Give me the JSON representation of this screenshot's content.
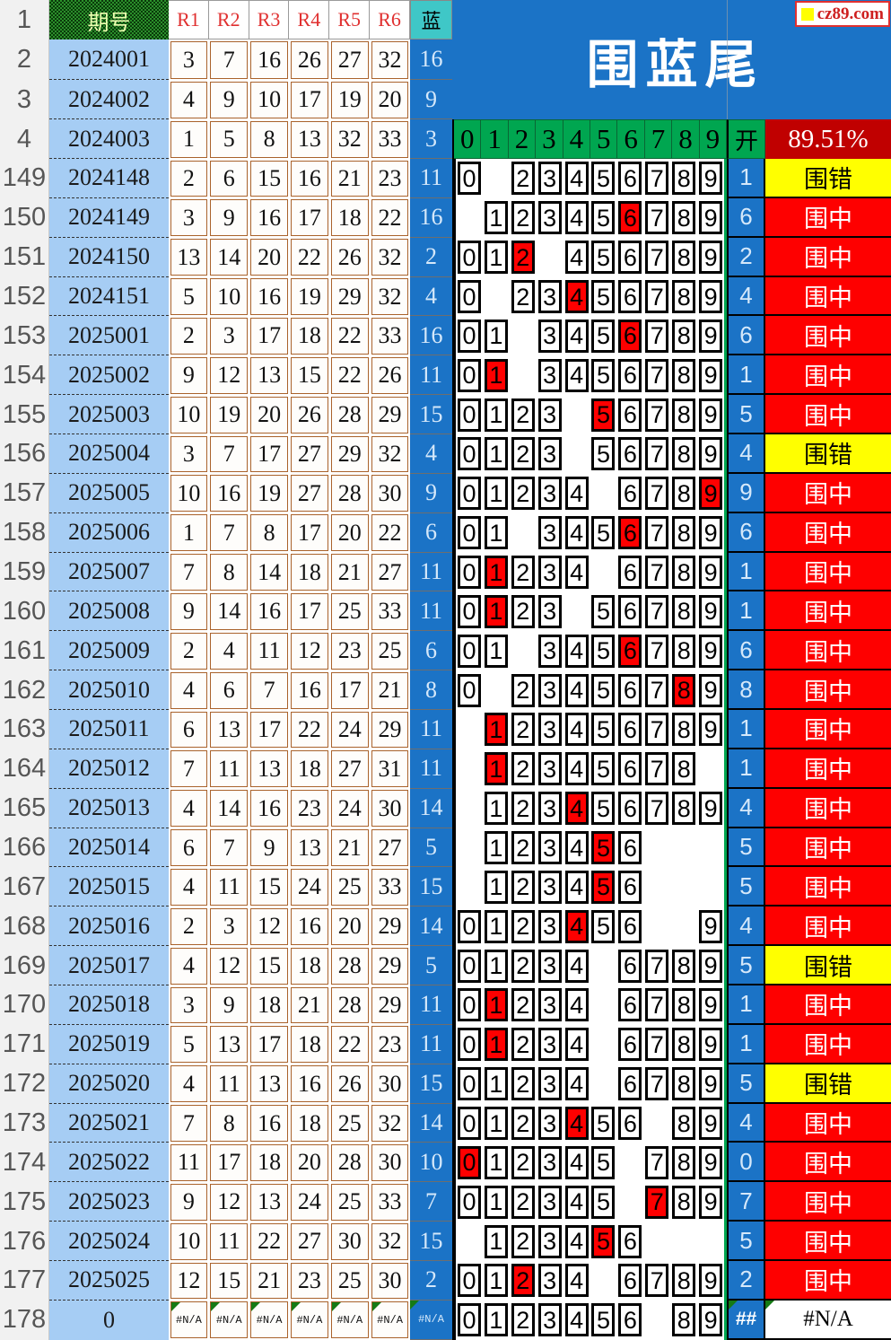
{
  "header": {
    "corner_rows": [
      "1",
      "2",
      "3",
      "4"
    ],
    "period_label": "期号",
    "r_labels": [
      "R1",
      "R2",
      "R3",
      "R4",
      "R5",
      "R6"
    ],
    "blue_label": "蓝",
    "banner_title": "围蓝尾",
    "watermark_text": "cz89.com",
    "digits": [
      "0",
      "1",
      "2",
      "3",
      "4",
      "5",
      "6",
      "7",
      "8",
      "9"
    ],
    "kai_label": "开",
    "accuracy": "89.51%"
  },
  "status_legend": {
    "hit": "围中",
    "miss": "围错"
  },
  "colors": {
    "banner_blue": "#1B73C6",
    "period_light_blue": "#A6CDF4",
    "blue_header_teal": "#3FC7C7",
    "digit_header_green": "#00A650",
    "accuracy_dark_red": "#C00000",
    "hit_red": "#FE0000",
    "miss_yellow": "#FFFF00",
    "red_ball_border_brown": "#A9622B"
  },
  "top_rows": [
    {
      "n": "2",
      "p": "2024001",
      "r": [
        "3",
        "7",
        "16",
        "26",
        "27",
        "32"
      ],
      "b": "16"
    },
    {
      "n": "3",
      "p": "2024002",
      "r": [
        "4",
        "9",
        "10",
        "17",
        "19",
        "20"
      ],
      "b": "9"
    },
    {
      "n": "4",
      "p": "2024003",
      "r": [
        "1",
        "5",
        "8",
        "13",
        "32",
        "33"
      ],
      "b": "3"
    }
  ],
  "rows": [
    {
      "n": "149",
      "p": "2024148",
      "r": [
        "2",
        "6",
        "15",
        "16",
        "21",
        "23"
      ],
      "b": "11",
      "blanks": [
        1
      ],
      "red": -1,
      "k": "1",
      "s": "围错",
      "t": "miss"
    },
    {
      "n": "150",
      "p": "2024149",
      "r": [
        "3",
        "9",
        "16",
        "17",
        "18",
        "22"
      ],
      "b": "16",
      "blanks": [
        0
      ],
      "red": 6,
      "k": "6",
      "s": "围中",
      "t": "hit"
    },
    {
      "n": "151",
      "p": "2024150",
      "r": [
        "13",
        "14",
        "20",
        "22",
        "26",
        "32"
      ],
      "b": "2",
      "blanks": [
        3
      ],
      "red": 2,
      "k": "2",
      "s": "围中",
      "t": "hit"
    },
    {
      "n": "152",
      "p": "2024151",
      "r": [
        "5",
        "10",
        "16",
        "19",
        "29",
        "32"
      ],
      "b": "4",
      "blanks": [
        1
      ],
      "red": 4,
      "k": "4",
      "s": "围中",
      "t": "hit"
    },
    {
      "n": "153",
      "p": "2025001",
      "r": [
        "2",
        "3",
        "17",
        "18",
        "22",
        "33"
      ],
      "b": "16",
      "blanks": [
        2
      ],
      "red": 6,
      "k": "6",
      "s": "围中",
      "t": "hit"
    },
    {
      "n": "154",
      "p": "2025002",
      "r": [
        "9",
        "12",
        "13",
        "15",
        "22",
        "26"
      ],
      "b": "11",
      "blanks": [
        2
      ],
      "red": 1,
      "k": "1",
      "s": "围中",
      "t": "hit"
    },
    {
      "n": "155",
      "p": "2025003",
      "r": [
        "10",
        "19",
        "20",
        "26",
        "28",
        "29"
      ],
      "b": "15",
      "blanks": [
        4
      ],
      "red": 5,
      "k": "5",
      "s": "围中",
      "t": "hit"
    },
    {
      "n": "156",
      "p": "2025004",
      "r": [
        "3",
        "7",
        "17",
        "27",
        "29",
        "32"
      ],
      "b": "4",
      "blanks": [
        4
      ],
      "red": -1,
      "k": "4",
      "s": "围错",
      "t": "miss"
    },
    {
      "n": "157",
      "p": "2025005",
      "r": [
        "10",
        "16",
        "19",
        "27",
        "28",
        "30"
      ],
      "b": "9",
      "blanks": [
        5
      ],
      "red": 9,
      "k": "9",
      "s": "围中",
      "t": "hit"
    },
    {
      "n": "158",
      "p": "2025006",
      "r": [
        "1",
        "7",
        "8",
        "17",
        "20",
        "22"
      ],
      "b": "6",
      "blanks": [
        2
      ],
      "red": 6,
      "k": "6",
      "s": "围中",
      "t": "hit"
    },
    {
      "n": "159",
      "p": "2025007",
      "r": [
        "7",
        "8",
        "14",
        "18",
        "21",
        "27"
      ],
      "b": "11",
      "blanks": [
        5
      ],
      "red": 1,
      "k": "1",
      "s": "围中",
      "t": "hit"
    },
    {
      "n": "160",
      "p": "2025008",
      "r": [
        "9",
        "14",
        "16",
        "17",
        "25",
        "33"
      ],
      "b": "11",
      "blanks": [
        4
      ],
      "red": 1,
      "k": "1",
      "s": "围中",
      "t": "hit"
    },
    {
      "n": "161",
      "p": "2025009",
      "r": [
        "2",
        "4",
        "11",
        "12",
        "23",
        "25"
      ],
      "b": "6",
      "blanks": [
        2
      ],
      "red": 6,
      "k": "6",
      "s": "围中",
      "t": "hit"
    },
    {
      "n": "162",
      "p": "2025010",
      "r": [
        "4",
        "6",
        "7",
        "16",
        "17",
        "21"
      ],
      "b": "8",
      "blanks": [
        1
      ],
      "red": 8,
      "k": "8",
      "s": "围中",
      "t": "hit"
    },
    {
      "n": "163",
      "p": "2025011",
      "r": [
        "6",
        "13",
        "17",
        "22",
        "24",
        "29"
      ],
      "b": "11",
      "blanks": [
        0
      ],
      "red": 1,
      "k": "1",
      "s": "围中",
      "t": "hit"
    },
    {
      "n": "164",
      "p": "2025012",
      "r": [
        "7",
        "11",
        "13",
        "18",
        "27",
        "31"
      ],
      "b": "11",
      "blanks": [
        0,
        9
      ],
      "red": 1,
      "k": "1",
      "s": "围中",
      "t": "hit"
    },
    {
      "n": "165",
      "p": "2025013",
      "r": [
        "4",
        "14",
        "16",
        "23",
        "24",
        "30"
      ],
      "b": "14",
      "blanks": [
        0
      ],
      "red": 4,
      "k": "4",
      "s": "围中",
      "t": "hit"
    },
    {
      "n": "166",
      "p": "2025014",
      "r": [
        "6",
        "7",
        "9",
        "13",
        "21",
        "27"
      ],
      "b": "5",
      "blanks": [
        0,
        7,
        8,
        9
      ],
      "red": 5,
      "k": "5",
      "s": "围中",
      "t": "hit"
    },
    {
      "n": "167",
      "p": "2025015",
      "r": [
        "4",
        "11",
        "15",
        "24",
        "25",
        "33"
      ],
      "b": "15",
      "blanks": [
        0,
        7,
        8,
        9
      ],
      "red": 5,
      "k": "5",
      "s": "围中",
      "t": "hit"
    },
    {
      "n": "168",
      "p": "2025016",
      "r": [
        "2",
        "3",
        "12",
        "16",
        "20",
        "29"
      ],
      "b": "14",
      "blanks": [
        7,
        8
      ],
      "red": 4,
      "k": "4",
      "s": "围中",
      "t": "hit"
    },
    {
      "n": "169",
      "p": "2025017",
      "r": [
        "4",
        "12",
        "15",
        "18",
        "28",
        "29"
      ],
      "b": "5",
      "blanks": [
        5
      ],
      "red": -1,
      "k": "5",
      "s": "围错",
      "t": "miss"
    },
    {
      "n": "170",
      "p": "2025018",
      "r": [
        "3",
        "9",
        "18",
        "21",
        "28",
        "29"
      ],
      "b": "11",
      "blanks": [
        5
      ],
      "red": 1,
      "k": "1",
      "s": "围中",
      "t": "hit"
    },
    {
      "n": "171",
      "p": "2025019",
      "r": [
        "5",
        "13",
        "17",
        "18",
        "22",
        "23"
      ],
      "b": "11",
      "blanks": [
        5
      ],
      "red": 1,
      "k": "1",
      "s": "围中",
      "t": "hit"
    },
    {
      "n": "172",
      "p": "2025020",
      "r": [
        "4",
        "11",
        "13",
        "16",
        "26",
        "30"
      ],
      "b": "15",
      "blanks": [
        5
      ],
      "red": -1,
      "k": "5",
      "s": "围错",
      "t": "miss"
    },
    {
      "n": "173",
      "p": "2025021",
      "r": [
        "7",
        "8",
        "16",
        "18",
        "25",
        "32"
      ],
      "b": "14",
      "blanks": [
        7
      ],
      "red": 4,
      "k": "4",
      "s": "围中",
      "t": "hit"
    },
    {
      "n": "174",
      "p": "2025022",
      "r": [
        "11",
        "17",
        "18",
        "20",
        "28",
        "30"
      ],
      "b": "10",
      "blanks": [
        6
      ],
      "red": 0,
      "k": "0",
      "s": "围中",
      "t": "hit"
    },
    {
      "n": "175",
      "p": "2025023",
      "r": [
        "9",
        "12",
        "13",
        "24",
        "25",
        "33"
      ],
      "b": "7",
      "blanks": [
        6
      ],
      "red": 7,
      "k": "7",
      "s": "围中",
      "t": "hit"
    },
    {
      "n": "176",
      "p": "2025024",
      "r": [
        "10",
        "11",
        "22",
        "27",
        "30",
        "32"
      ],
      "b": "15",
      "blanks": [
        0,
        7,
        8,
        9
      ],
      "red": 5,
      "k": "5",
      "s": "围中",
      "t": "hit"
    },
    {
      "n": "177",
      "p": "2025025",
      "r": [
        "12",
        "15",
        "21",
        "23",
        "25",
        "30"
      ],
      "b": "2",
      "blanks": [
        5
      ],
      "red": 2,
      "k": "2",
      "s": "围中",
      "t": "hit"
    },
    {
      "n": "178",
      "p": "0",
      "r": [
        "#N/A",
        "#N/A",
        "#N/A",
        "#N/A",
        "#N/A",
        "#N/A"
      ],
      "b": "#N/A",
      "blanks": [
        7
      ],
      "red": -1,
      "k": "##",
      "s": "#N/A",
      "t": "na"
    }
  ]
}
